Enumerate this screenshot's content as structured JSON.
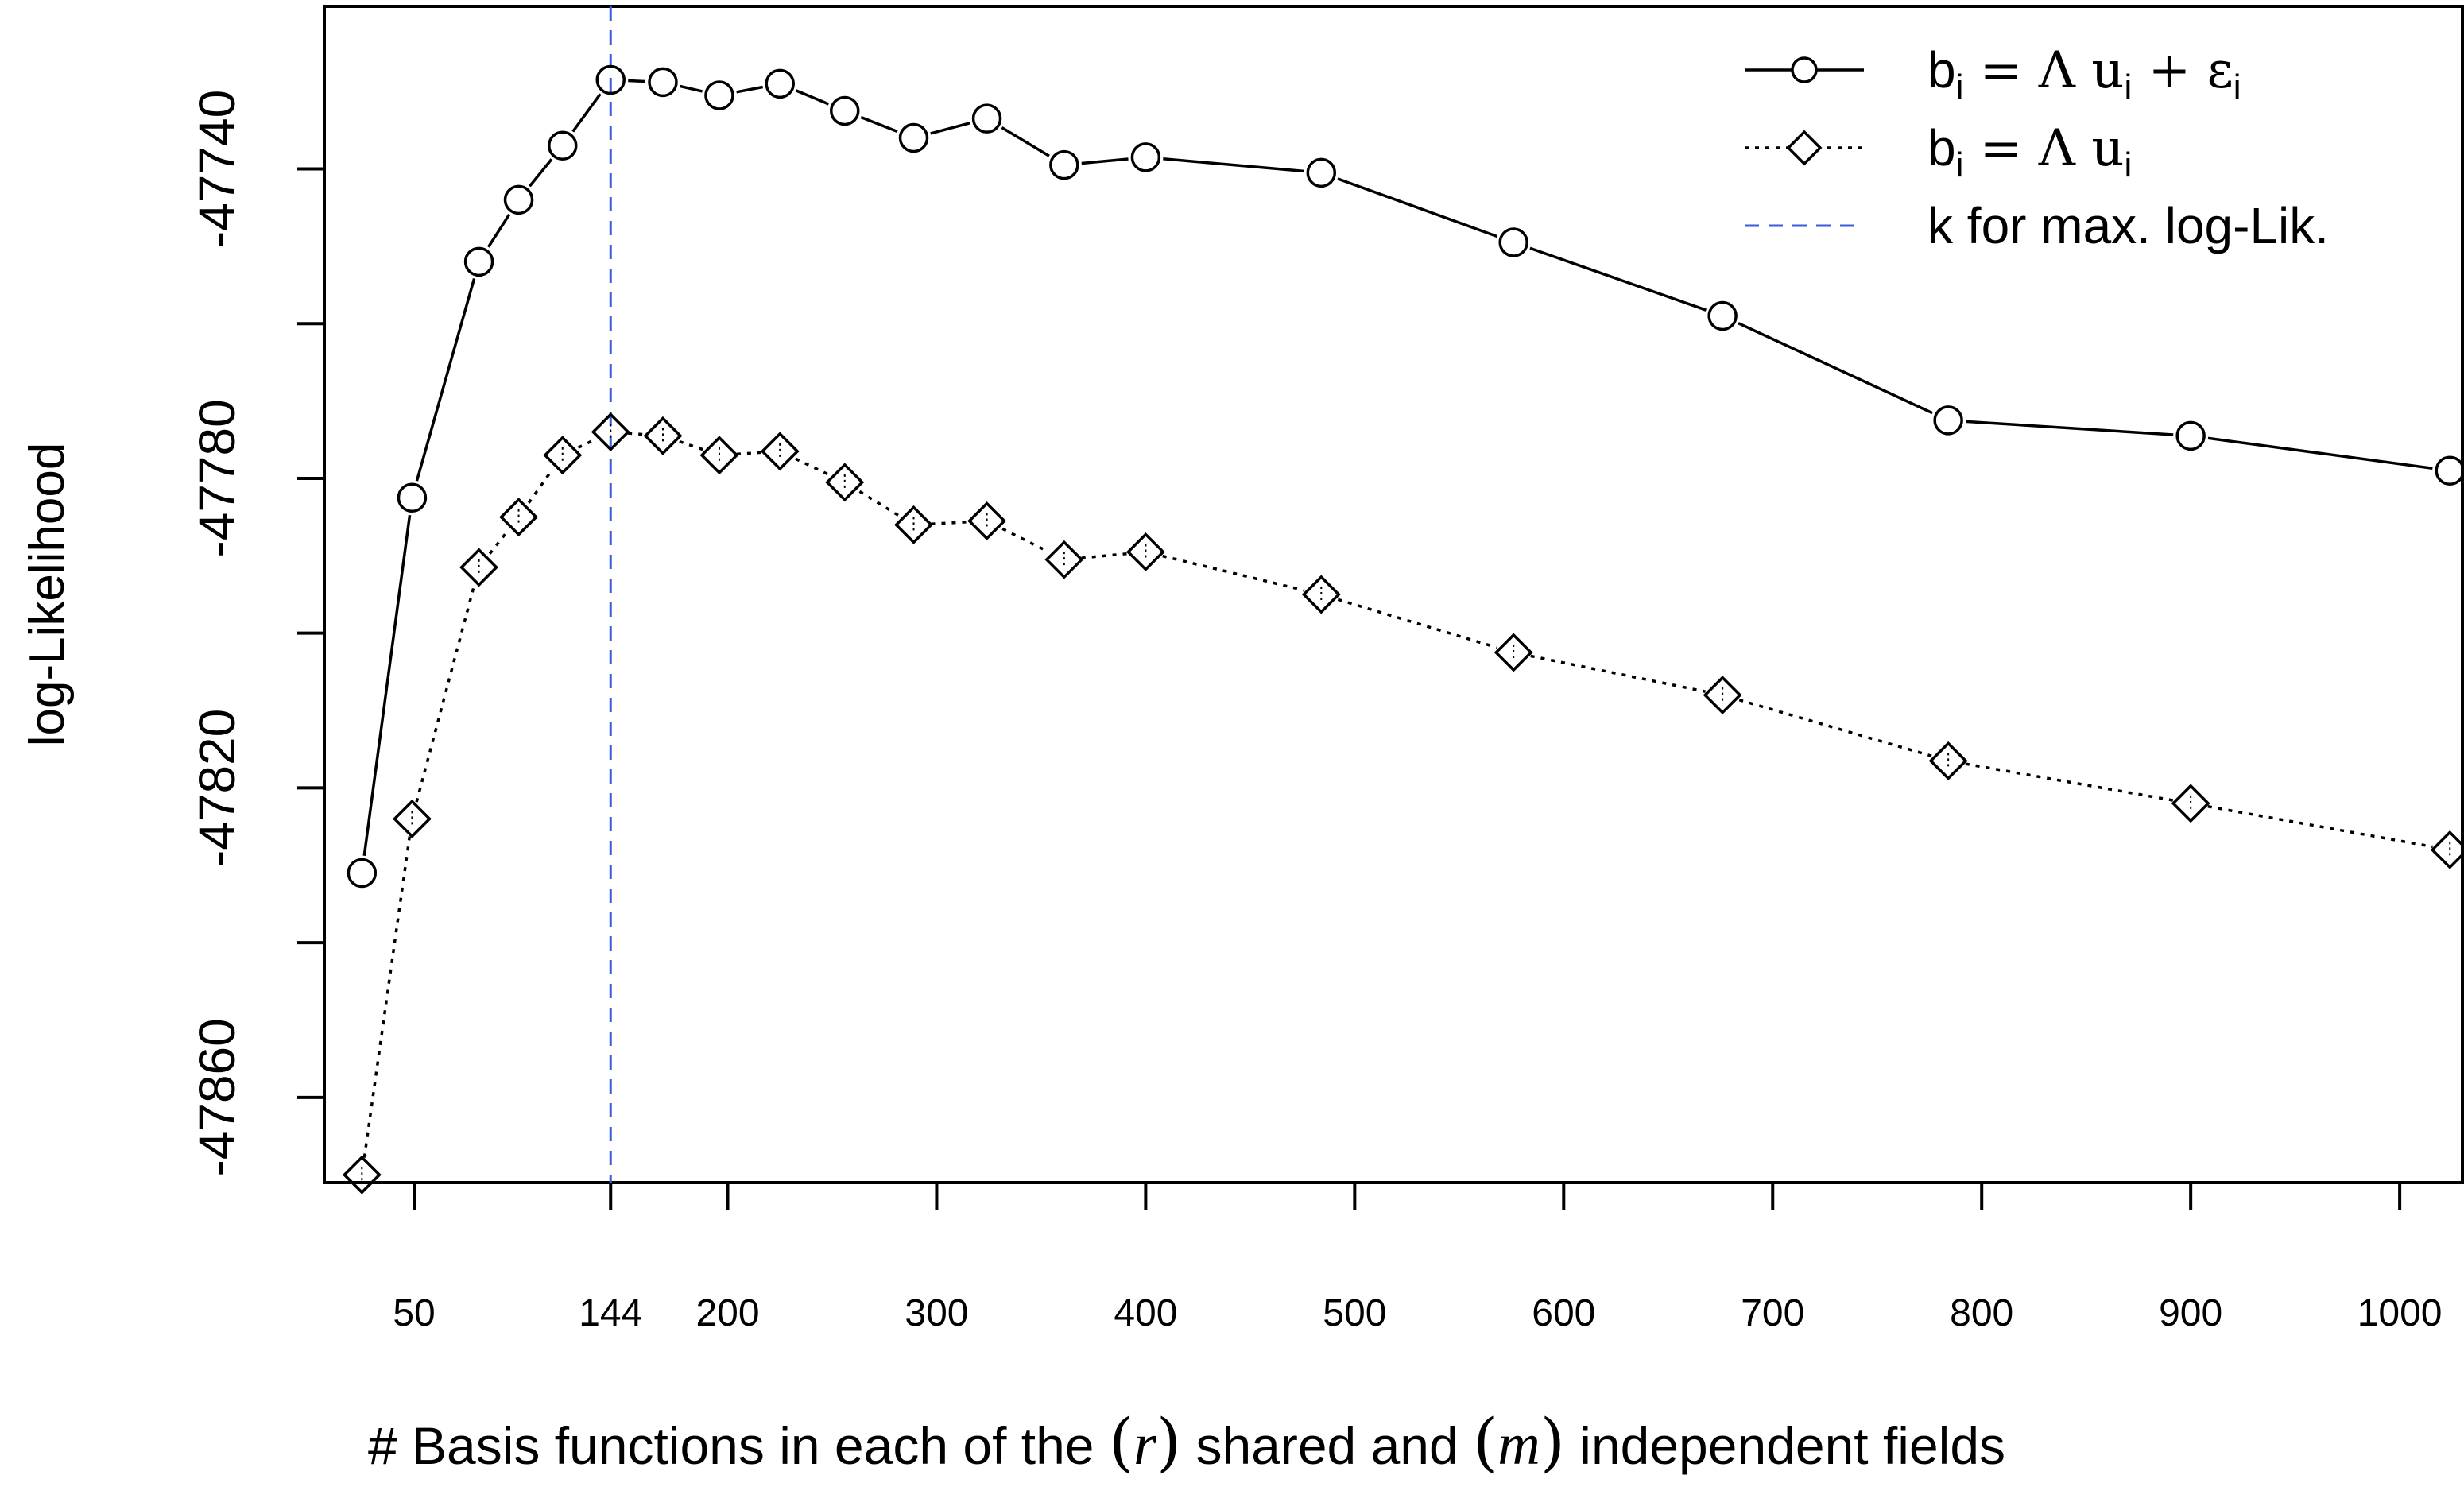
{
  "chart_data": {
    "type": "line",
    "xlabel_parts": {
      "p1": "# Basis functions in each of the ",
      "p2": "(",
      "p3": "r",
      "p4": ")",
      "p5": " shared and ",
      "p6": "(",
      "p7": "m",
      "p8": ")",
      "p9": " independent fields"
    },
    "ylabel": "log-Likelihood",
    "xlim": [
      7,
      1030
    ],
    "ylim": [
      -47871,
      -47719
    ],
    "x_ticks": [
      50,
      144,
      200,
      300,
      400,
      500,
      600,
      700,
      800,
      900,
      1000
    ],
    "x_tick_labels": [
      "50",
      "144",
      "200",
      "300",
      "400",
      "500",
      "600",
      "700",
      "800",
      "900",
      "1000"
    ],
    "y_ticks": [
      -47740,
      -47760,
      -47780,
      -47800,
      -47820,
      -47840,
      -47860
    ],
    "y_tick_labels": [
      "-47740",
      "",
      "-47780",
      "",
      "-47820",
      "",
      "-47860"
    ],
    "vline_x": 144,
    "series": [
      {
        "x": [
          25,
          49,
          81,
          100,
          121,
          144,
          169,
          196,
          225,
          256,
          289,
          324,
          361,
          400,
          484,
          576,
          676,
          784,
          900,
          1024
        ],
        "y": [
          -47831,
          -47782.5,
          -47752,
          -47744,
          -47737,
          -47728.5,
          -47728.8,
          -47730.5,
          -47729,
          -47732.5,
          -47736,
          -47733.5,
          -47739.5,
          -47738.5,
          -47740.5,
          -47749.5,
          -47759,
          -47772.5,
          -47774.5,
          -47779
        ],
        "marker": "circle",
        "line": "solid",
        "color": "#000000"
      },
      {
        "x": [
          25,
          49,
          81,
          100,
          121,
          144,
          169,
          196,
          225,
          256,
          289,
          324,
          361,
          400,
          484,
          576,
          676,
          784,
          900,
          1024
        ],
        "y": [
          -47870,
          -47824,
          -47791.5,
          -47785,
          -47777,
          -47774,
          -47774.5,
          -47777,
          -47776.5,
          -47780.5,
          -47786,
          -47785.5,
          -47790.5,
          -47789.5,
          -47795,
          -47802.5,
          -47808,
          -47816.5,
          -47822,
          -47828
        ]
      }
    ],
    "legend": {
      "position": "top-right",
      "entries": [
        {
          "label": "bi = Λ ui + εi",
          "marker": "circle",
          "line": "solid",
          "color": "#000000"
        },
        {
          "label": "bi = Λ ui",
          "marker": "diamond",
          "line": "dotted",
          "color": "#000000"
        },
        {
          "label": "k for max. log-Lik.",
          "marker": "none",
          "line": "dashed",
          "color": "#3a5fd9"
        }
      ],
      "rich": [
        {
          "b": "b",
          "bsub": "i",
          "eq": " = Λ u",
          "usub": "i",
          "plus": " + ε",
          "esub": "i"
        },
        {
          "b": "b",
          "bsub": "i",
          "eq": " = Λ u",
          "usub": "i"
        },
        {
          "text": "k for max. log-Lik."
        }
      ]
    }
  }
}
